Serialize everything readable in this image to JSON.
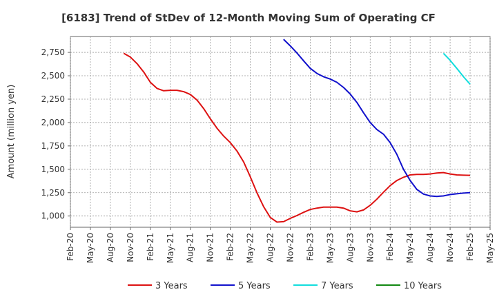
{
  "chart_data": {
    "type": "line",
    "title": "[6183]  Trend of StDev of 12-Month Moving Sum of Operating CF",
    "xlabel": "",
    "ylabel": "Amount (million yen)",
    "ylim": [
      880,
      2920
    ],
    "yticks": [
      1000,
      1250,
      1500,
      1750,
      2000,
      2250,
      2500,
      2750
    ],
    "ytick_labels": [
      "1,000",
      "1,250",
      "1,500",
      "1,750",
      "2,000",
      "2,250",
      "2,500",
      "2,750"
    ],
    "xlim": [
      "Feb-20",
      "May-25"
    ],
    "xtick_labels": [
      "Feb-20",
      "May-20",
      "Aug-20",
      "Nov-20",
      "Feb-21",
      "May-21",
      "Aug-21",
      "Nov-21",
      "Feb-22",
      "May-22",
      "Aug-22",
      "Nov-22",
      "Feb-23",
      "May-23",
      "Aug-23",
      "Nov-23",
      "Feb-24",
      "May-24",
      "Aug-24",
      "Nov-24",
      "Feb-25",
      "May-25"
    ],
    "grid": true,
    "legend_position": "bottom",
    "series": [
      {
        "name": "3 Years",
        "color": "#dd1111",
        "x": [
          "Oct-20",
          "Nov-20",
          "Dec-20",
          "Jan-21",
          "Feb-21",
          "Mar-21",
          "Apr-21",
          "May-21",
          "Jun-21",
          "Jul-21",
          "Aug-21",
          "Sep-21",
          "Oct-21",
          "Nov-21",
          "Dec-21",
          "Jan-22",
          "Feb-22",
          "Mar-22",
          "Apr-22",
          "May-22",
          "Jun-22",
          "Jul-22",
          "Aug-22",
          "Sep-22",
          "Oct-22",
          "Nov-22",
          "Dec-22",
          "Jan-23",
          "Feb-23",
          "Mar-23",
          "Apr-23",
          "May-23",
          "Jun-23",
          "Jul-23",
          "Aug-23",
          "Sep-23",
          "Oct-23",
          "Nov-23",
          "Dec-23",
          "Jan-24",
          "Feb-24",
          "Mar-24",
          "Apr-24",
          "May-24",
          "Jun-24",
          "Jul-24",
          "Aug-24",
          "Sep-24",
          "Oct-24",
          "Nov-24",
          "Dec-24",
          "Jan-25",
          "Feb-25"
        ],
        "values": [
          2740,
          2700,
          2630,
          2540,
          2430,
          2365,
          2340,
          2345,
          2345,
          2330,
          2300,
          2240,
          2150,
          2040,
          1940,
          1855,
          1785,
          1695,
          1580,
          1420,
          1250,
          1100,
          985,
          935,
          940,
          975,
          1005,
          1040,
          1070,
          1085,
          1095,
          1095,
          1095,
          1085,
          1055,
          1045,
          1065,
          1115,
          1180,
          1255,
          1325,
          1380,
          1415,
          1440,
          1445,
          1445,
          1450,
          1460,
          1465,
          1450,
          1440,
          1437,
          1435
        ]
      },
      {
        "name": "5 Years",
        "color": "#1111cc",
        "x": [
          "Oct-22",
          "Nov-22",
          "Dec-22",
          "Jan-23",
          "Feb-23",
          "Mar-23",
          "Apr-23",
          "May-23",
          "Jun-23",
          "Jul-23",
          "Aug-23",
          "Sep-23",
          "Oct-23",
          "Nov-23",
          "Dec-23",
          "Jan-24",
          "Feb-24",
          "Mar-24",
          "Apr-24",
          "May-24",
          "Jun-24",
          "Jul-24",
          "Aug-24",
          "Sep-24",
          "Oct-24",
          "Nov-24",
          "Dec-24",
          "Jan-25",
          "Feb-25"
        ],
        "values": [
          2890,
          2820,
          2745,
          2660,
          2580,
          2525,
          2490,
          2465,
          2430,
          2375,
          2305,
          2215,
          2105,
          2000,
          1925,
          1875,
          1785,
          1660,
          1500,
          1380,
          1285,
          1235,
          1215,
          1210,
          1215,
          1230,
          1238,
          1245,
          1250
        ]
      },
      {
        "name": "7 Years",
        "color": "#11dddd",
        "x": [
          "Oct-24",
          "Nov-24",
          "Dec-24",
          "Jan-25",
          "Feb-25"
        ],
        "values": [
          2740,
          2665,
          2580,
          2490,
          2410
        ]
      },
      {
        "name": "10 Years",
        "color": "#118811",
        "x": [],
        "values": []
      }
    ]
  }
}
